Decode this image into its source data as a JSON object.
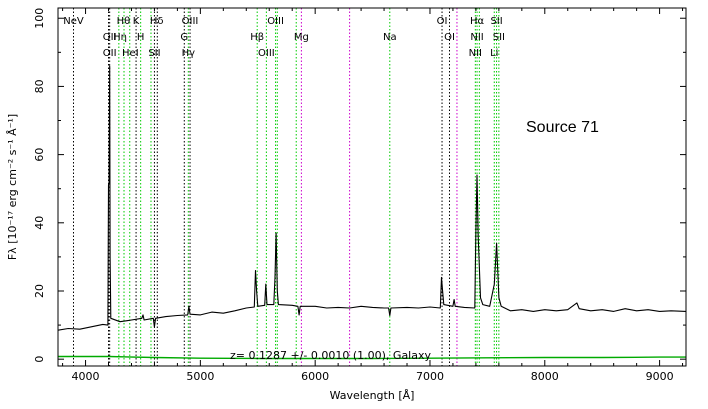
{
  "chart_data": {
    "type": "line",
    "xlabel": "Wavelength [Å]",
    "ylabel": "Fλ [10⁻¹⁷ erg cm⁻² s⁻¹ Å⁻¹]",
    "xlim": [
      3760,
      9230
    ],
    "ylim": [
      -2,
      103
    ],
    "x_ticks": [
      4000,
      5000,
      6000,
      7000,
      8000,
      9000
    ],
    "y_ticks": [
      0,
      20,
      40,
      60,
      80,
      100
    ],
    "grid": false,
    "annotations": {
      "source": "Source 71",
      "redshift": "z= 0.1287 +/- 0.0010 (1.00), Galaxy"
    },
    "colors": {
      "spectrum": "#000000",
      "noise": "#00aa00",
      "emission_line": "#00cc00",
      "sky_line": "#cc00cc",
      "absorption_line": "#000000"
    },
    "series": [
      {
        "name": "",
        "color": "#000000",
        "points": [
          [
            3760,
            8.5
          ],
          [
            3850,
            9.0
          ],
          [
            3950,
            8.8
          ],
          [
            4050,
            9.5
          ],
          [
            4150,
            10.2
          ],
          [
            4195,
            10.0
          ],
          [
            4200,
            51.0
          ],
          [
            4205,
            52.0
          ],
          [
            4210,
            86.0
          ],
          [
            4214,
            30.0
          ],
          [
            4220,
            12.0
          ],
          [
            4300,
            11.0
          ],
          [
            4400,
            11.5
          ],
          [
            4490,
            12.0
          ],
          [
            4500,
            13.0
          ],
          [
            4510,
            11.5
          ],
          [
            4590,
            12.0
          ],
          [
            4600,
            9.5
          ],
          [
            4610,
            12.0
          ],
          [
            4700,
            12.5
          ],
          [
            4800,
            12.8
          ],
          [
            4890,
            13.0
          ],
          [
            4900,
            15.5
          ],
          [
            4910,
            13.2
          ],
          [
            5000,
            13.0
          ],
          [
            5100,
            13.8
          ],
          [
            5200,
            13.5
          ],
          [
            5300,
            14.2
          ],
          [
            5400,
            15.0
          ],
          [
            5470,
            15.3
          ],
          [
            5480,
            26.0
          ],
          [
            5490,
            20.0
          ],
          [
            5500,
            15.5
          ],
          [
            5560,
            15.8
          ],
          [
            5570,
            22.0
          ],
          [
            5580,
            16.0
          ],
          [
            5640,
            16.0
          ],
          [
            5650,
            24.0
          ],
          [
            5660,
            37.0
          ],
          [
            5670,
            20.0
          ],
          [
            5680,
            16.0
          ],
          [
            5800,
            15.8
          ],
          [
            5850,
            15.5
          ],
          [
            5860,
            13.0
          ],
          [
            5870,
            15.5
          ],
          [
            6000,
            15.5
          ],
          [
            6100,
            15.0
          ],
          [
            6200,
            15.2
          ],
          [
            6300,
            15.0
          ],
          [
            6400,
            15.5
          ],
          [
            6500,
            15.2
          ],
          [
            6600,
            15.0
          ],
          [
            6640,
            15.0
          ],
          [
            6650,
            12.8
          ],
          [
            6660,
            15.0
          ],
          [
            6800,
            15.2
          ],
          [
            6900,
            15.0
          ],
          [
            7000,
            15.3
          ],
          [
            7090,
            15.0
          ],
          [
            7100,
            24.0
          ],
          [
            7110,
            20.0
          ],
          [
            7120,
            16.0
          ],
          [
            7200,
            15.5
          ],
          [
            7210,
            17.5
          ],
          [
            7220,
            15.5
          ],
          [
            7300,
            15.2
          ],
          [
            7390,
            15.0
          ],
          [
            7400,
            38.0
          ],
          [
            7410,
            54.0
          ],
          [
            7420,
            36.0
          ],
          [
            7440,
            18.0
          ],
          [
            7460,
            16.0
          ],
          [
            7520,
            15.5
          ],
          [
            7560,
            22.0
          ],
          [
            7580,
            34.0
          ],
          [
            7600,
            18.0
          ],
          [
            7620,
            15.5
          ],
          [
            7700,
            14.2
          ],
          [
            7800,
            14.5
          ],
          [
            7900,
            14.0
          ],
          [
            8000,
            14.5
          ],
          [
            8100,
            14.2
          ],
          [
            8200,
            14.5
          ],
          [
            8280,
            16.5
          ],
          [
            8300,
            14.8
          ],
          [
            8400,
            14.2
          ],
          [
            8500,
            14.5
          ],
          [
            8600,
            14.0
          ],
          [
            8700,
            14.8
          ],
          [
            8800,
            14.2
          ],
          [
            8900,
            14.5
          ],
          [
            9000,
            14.0
          ],
          [
            9100,
            14.2
          ],
          [
            9230,
            14.0
          ]
        ]
      },
      {
        "name": "",
        "color": "#00aa00",
        "points": [
          [
            3760,
            0.8
          ],
          [
            4200,
            0.8
          ],
          [
            4600,
            0.5
          ],
          [
            5000,
            0.3
          ],
          [
            5500,
            0.2
          ],
          [
            6000,
            0.2
          ],
          [
            6500,
            0.2
          ],
          [
            7000,
            0.3
          ],
          [
            7500,
            0.4
          ],
          [
            8000,
            0.5
          ],
          [
            8500,
            0.5
          ],
          [
            9000,
            0.6
          ],
          [
            9230,
            0.6
          ]
        ]
      }
    ],
    "vlines": [
      {
        "x": 3895,
        "color": "#000000",
        "style": "dotted"
      },
      {
        "x": 4200,
        "color": "#000000",
        "style": "dotted"
      },
      {
        "x": 4210,
        "color": "#000000",
        "style": "dotted"
      },
      {
        "x": 4290,
        "color": "#00cc00",
        "style": "dotted"
      },
      {
        "x": 4335,
        "color": "#00cc00",
        "style": "dotted"
      },
      {
        "x": 4385,
        "color": "#00cc00",
        "style": "dotted"
      },
      {
        "x": 4440,
        "color": "#000000",
        "style": "dotted"
      },
      {
        "x": 4480,
        "color": "#00cc00",
        "style": "dotted"
      },
      {
        "x": 4570,
        "color": "#00cc00",
        "style": "dotted"
      },
      {
        "x": 4600,
        "color": "#000000",
        "style": "dotted"
      },
      {
        "x": 4625,
        "color": "#000000",
        "style": "dotted"
      },
      {
        "x": 4860,
        "color": "#000000",
        "style": "dotted"
      },
      {
        "x": 4895,
        "color": "#00cc00",
        "style": "dotted"
      },
      {
        "x": 4910,
        "color": "#000000",
        "style": "dotted"
      },
      {
        "x": 5495,
        "color": "#00cc00",
        "style": "dotted"
      },
      {
        "x": 5575,
        "color": "#00cc00",
        "style": "dotted"
      },
      {
        "x": 5655,
        "color": "#00cc00",
        "style": "dotted"
      },
      {
        "x": 5670,
        "color": "#00cc00",
        "style": "dotted"
      },
      {
        "x": 5835,
        "color": "#00cc00",
        "style": "dotted"
      },
      {
        "x": 5880,
        "color": "#cc00cc",
        "style": "dotted"
      },
      {
        "x": 6300,
        "color": "#cc00cc",
        "style": "dotted"
      },
      {
        "x": 6650,
        "color": "#00cc00",
        "style": "dotted"
      },
      {
        "x": 7105,
        "color": "#000000",
        "style": "dotted"
      },
      {
        "x": 7170,
        "color": "#000000",
        "style": "dotted"
      },
      {
        "x": 7235,
        "color": "#cc00cc",
        "style": "dotted"
      },
      {
        "x": 7395,
        "color": "#00cc00",
        "style": "dotted"
      },
      {
        "x": 7410,
        "color": "#00cc00",
        "style": "dotted"
      },
      {
        "x": 7430,
        "color": "#00cc00",
        "style": "dotted"
      },
      {
        "x": 7560,
        "color": "#00cc00",
        "style": "dotted"
      },
      {
        "x": 7580,
        "color": "#00cc00",
        "style": "dotted"
      },
      {
        "x": 7600,
        "color": "#00cc00",
        "style": "dotted"
      }
    ],
    "line_labels": [
      {
        "text": "NeV",
        "x": 3895,
        "row": 0
      },
      {
        "text": "Hθ",
        "x": 4330,
        "row": 0
      },
      {
        "text": "K",
        "x": 4440,
        "row": 0
      },
      {
        "text": "Hδ",
        "x": 4620,
        "row": 0
      },
      {
        "text": "OIII",
        "x": 4910,
        "row": 0
      },
      {
        "text": "OIII",
        "x": 5655,
        "row": 0
      },
      {
        "text": "OI",
        "x": 7105,
        "row": 0
      },
      {
        "text": "Hα",
        "x": 7410,
        "row": 0
      },
      {
        "text": "SII",
        "x": 7580,
        "row": 0
      },
      {
        "text": "OII",
        "x": 4210,
        "row": 1
      },
      {
        "text": "Hη",
        "x": 4300,
        "row": 1
      },
      {
        "text": "H",
        "x": 4480,
        "row": 1
      },
      {
        "text": "G",
        "x": 4860,
        "row": 1
      },
      {
        "text": "Hβ",
        "x": 5495,
        "row": 1
      },
      {
        "text": "Mg",
        "x": 5880,
        "row": 1
      },
      {
        "text": "Na",
        "x": 6650,
        "row": 1
      },
      {
        "text": "OI",
        "x": 7170,
        "row": 1
      },
      {
        "text": "NII",
        "x": 7410,
        "row": 1
      },
      {
        "text": "SII",
        "x": 7600,
        "row": 1
      },
      {
        "text": "OII",
        "x": 4210,
        "row": 2
      },
      {
        "text": "HeI",
        "x": 4390,
        "row": 2
      },
      {
        "text": "SII",
        "x": 4600,
        "row": 2
      },
      {
        "text": "Hγ",
        "x": 4895,
        "row": 2
      },
      {
        "text": "OIII",
        "x": 5575,
        "row": 2
      },
      {
        "text": "NII",
        "x": 7395,
        "row": 2
      },
      {
        "text": "Li",
        "x": 7560,
        "row": 2
      }
    ]
  }
}
